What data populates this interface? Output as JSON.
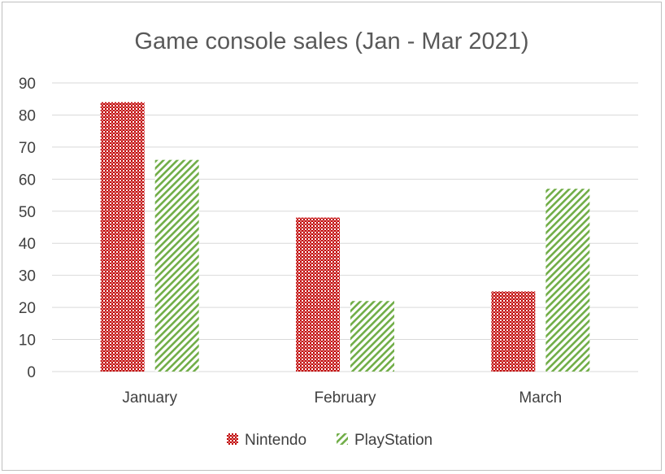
{
  "chart_data": {
    "type": "bar",
    "title": "Game console sales (Jan - Mar 2021)",
    "xlabel": "",
    "ylabel": "",
    "categories": [
      "January",
      "February",
      "March"
    ],
    "series": [
      {
        "name": "Nintendo",
        "values": [
          84,
          48,
          25
        ],
        "color": "#c00000",
        "pattern": "checker"
      },
      {
        "name": "PlayStation",
        "values": [
          66,
          22,
          57
        ],
        "color": "#70ad47",
        "pattern": "diagonal-stripes"
      }
    ],
    "ylim": [
      0,
      90
    ],
    "yticks": [
      0,
      10,
      20,
      30,
      40,
      50,
      60,
      70,
      80,
      90
    ],
    "grid": true,
    "legend_position": "bottom",
    "colors": {
      "gridline": "#d9d9d9",
      "axis_text": "#404040",
      "title_text": "#595959",
      "border": "#bfbfbf"
    }
  }
}
